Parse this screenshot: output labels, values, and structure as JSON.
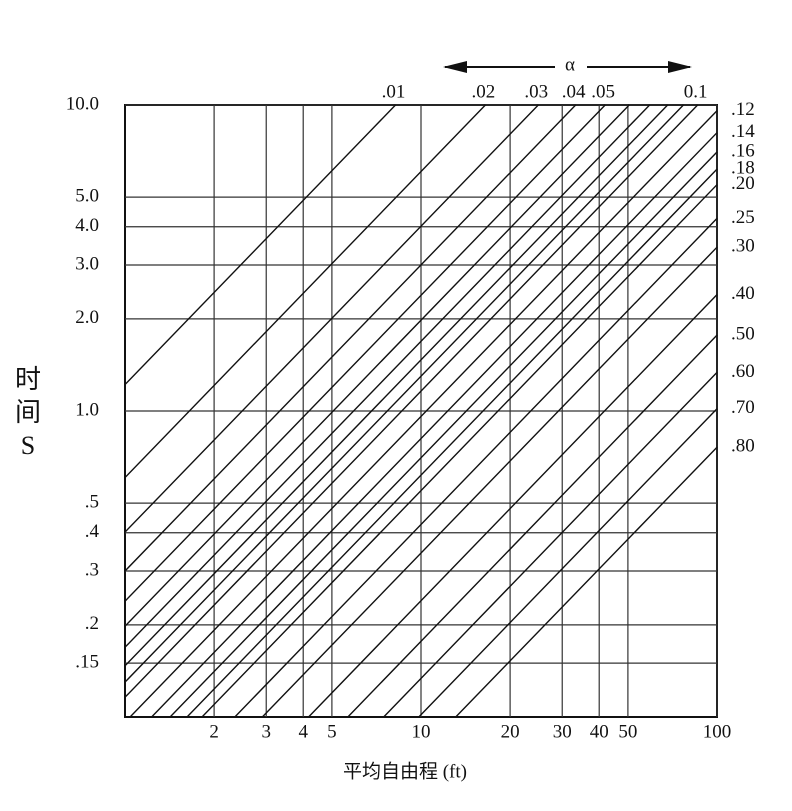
{
  "chart_data": {
    "type": "line",
    "x_label": "平均自由程 (ft)",
    "y_label": "时间S",
    "alpha_label": "α",
    "log_x": true,
    "log_y": true,
    "grid": true,
    "color": "#111111",
    "xlim": [
      1,
      100
    ],
    "ylim": [
      0.1,
      10
    ],
    "xticks": [
      2,
      3,
      4,
      5,
      10,
      20,
      30,
      40,
      50,
      100
    ],
    "yticks": [
      {
        "value": 10,
        "label": "10.0"
      },
      {
        "value": 5,
        "label": "5.0"
      },
      {
        "value": 4,
        "label": "4.0"
      },
      {
        "value": 3,
        "label": "3.0"
      },
      {
        "value": 2,
        "label": "2.0"
      },
      {
        "value": 1,
        "label": "1.0"
      },
      {
        "value": 0.5,
        "label": ".5"
      },
      {
        "value": 0.4,
        "label": ".4"
      },
      {
        "value": 0.3,
        "label": ".3"
      },
      {
        "value": 0.2,
        "label": ".2"
      },
      {
        "value": 0.15,
        "label": ".15"
      }
    ],
    "series": [
      {
        "name": ".01",
        "x": [
          1,
          8.2
        ],
        "values": [
          1.22,
          10
        ]
      },
      {
        "name": ".02",
        "x": [
          1,
          16.5
        ],
        "values": [
          0.606,
          10
        ]
      },
      {
        "name": ".03",
        "x": [
          1,
          24.9
        ],
        "values": [
          0.402,
          10
        ]
      },
      {
        "name": ".04",
        "x": [
          1,
          33.3
        ],
        "values": [
          0.3,
          10
        ]
      },
      {
        "name": ".05",
        "x": [
          1,
          41.9
        ],
        "values": [
          0.239,
          10
        ]
      },
      {
        "name": null,
        "x": [
          1,
          50.5
        ],
        "values": [
          0.198,
          10
        ]
      },
      {
        "name": null,
        "x": [
          1,
          59.2
        ],
        "values": [
          0.169,
          10
        ]
      },
      {
        "name": null,
        "x": [
          1,
          68.1
        ],
        "values": [
          0.147,
          10
        ]
      },
      {
        "name": null,
        "x": [
          1,
          77
        ],
        "values": [
          0.13,
          10
        ]
      },
      {
        "name": "0.1",
        "x": [
          1,
          86
        ],
        "values": [
          0.116,
          10
        ]
      },
      {
        "name": ".12",
        "x": [
          1.04,
          100
        ],
        "values": [
          0.1,
          9.58
        ]
      },
      {
        "name": ".14",
        "x": [
          1.23,
          100
        ],
        "values": [
          0.1,
          8.12
        ]
      },
      {
        "name": ".16",
        "x": [
          1.42,
          100
        ],
        "values": [
          0.1,
          7.02
        ]
      },
      {
        "name": ".18",
        "x": [
          1.62,
          100
        ],
        "values": [
          0.1,
          6.17
        ]
      },
      {
        "name": ".20",
        "x": [
          1.82,
          100
        ],
        "values": [
          0.1,
          5.49
        ]
      },
      {
        "name": ".25",
        "x": [
          2.35,
          100
        ],
        "values": [
          0.1,
          4.26
        ]
      },
      {
        "name": ".30",
        "x": [
          2.91,
          100
        ],
        "values": [
          0.1,
          3.43
        ]
      },
      {
        "name": ".40",
        "x": [
          4.17,
          100
        ],
        "values": [
          0.1,
          2.4
        ]
      },
      {
        "name": ".50",
        "x": [
          5.66,
          100
        ],
        "values": [
          0.1,
          1.77
        ]
      },
      {
        "name": ".60",
        "x": [
          7.48,
          100
        ],
        "values": [
          0.1,
          1.337
        ]
      },
      {
        "name": ".70",
        "x": [
          9.83,
          100
        ],
        "values": [
          0.1,
          1.017
        ]
      },
      {
        "name": ".80",
        "x": [
          13.1,
          100
        ],
        "values": [
          0.1,
          0.761
        ]
      }
    ]
  }
}
